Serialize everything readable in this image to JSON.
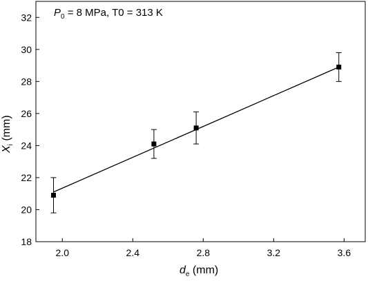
{
  "chart_data": {
    "type": "scatter",
    "annotation": {
      "symbol": "P",
      "symbol_subscript": "0",
      "text": " = 8 MPa, T0 = 313 K"
    },
    "xlabel": {
      "symbol": "d",
      "subscript": "e",
      "unit": " (mm)"
    },
    "ylabel": {
      "symbol": "X",
      "subscript": "i",
      "unit": " (mm)"
    },
    "xlim": [
      1.85,
      3.72
    ],
    "ylim": [
      18,
      33
    ],
    "xticks": [
      2.0,
      2.4,
      2.8,
      3.2,
      3.6
    ],
    "xtick_labels": [
      "2.0",
      "2.4",
      "2.8",
      "3.2",
      "3.6"
    ],
    "yticks": [
      18,
      20,
      22,
      24,
      26,
      28,
      30,
      32
    ],
    "ytick_labels": [
      "18",
      "20",
      "22",
      "24",
      "26",
      "28",
      "30",
      "32"
    ],
    "grid": false,
    "series": [
      {
        "marker": "square",
        "color": "#000000",
        "points": [
          {
            "x": 1.95,
            "y": 20.9,
            "err": 1.1
          },
          {
            "x": 2.52,
            "y": 24.1,
            "err": 0.9
          },
          {
            "x": 2.76,
            "y": 25.1,
            "err": 1.0
          },
          {
            "x": 3.57,
            "y": 28.9,
            "err": 0.9
          }
        ]
      }
    ],
    "fit_line": {
      "x": [
        1.95,
        3.57
      ],
      "y": [
        21.1,
        28.9
      ],
      "color": "#000000"
    }
  }
}
